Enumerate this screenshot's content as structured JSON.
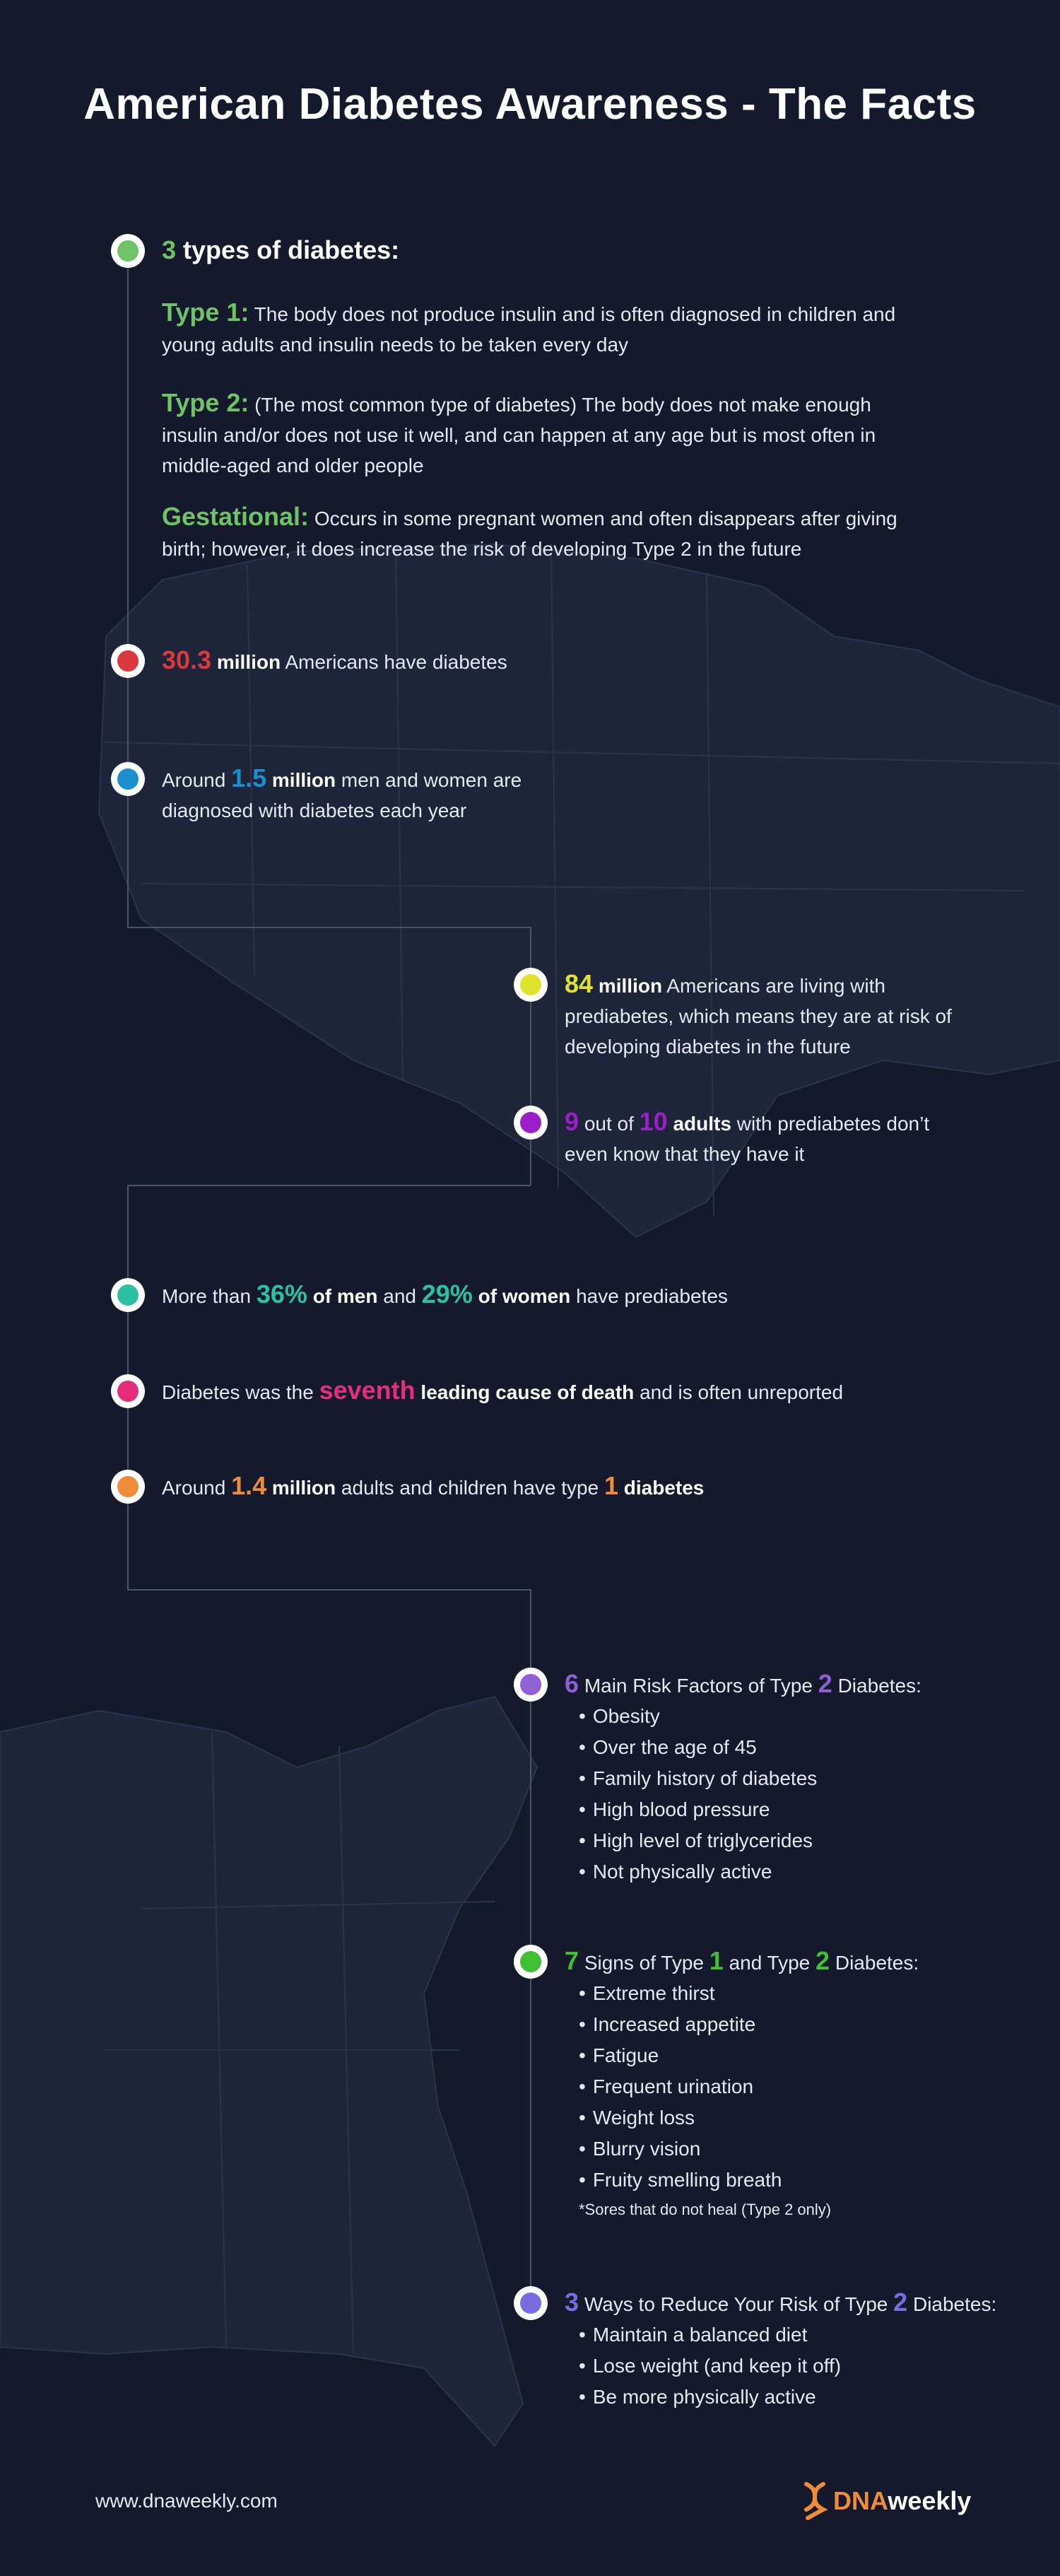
{
  "title": "American Diabetes Awareness - The Facts",
  "colors": {
    "background": "#141a2c",
    "map_land": "#1e253a",
    "map_border": "#2b334b",
    "green": "#70c267",
    "red": "#d9383c",
    "blue": "#1a8fcf",
    "yellow": "#e1e22b",
    "purple": "#9b1fc9",
    "teal": "#2dc1a2",
    "pink": "#e42e7a",
    "orange": "#ef8c3a",
    "lavender": "#8f5fd4",
    "bright_green": "#3fbf32",
    "periwinkle": "#7a6ce0"
  },
  "types": {
    "count": "3",
    "heading": "types of diabetes:",
    "type1_label": "Type 1:",
    "type1_text": "The body does not produce insulin and is often diagnosed in children and young adults and insulin needs to be taken every day",
    "type2_label": "Type 2:",
    "type2_text": "(The most common type of diabetes) The body does not make enough insulin and/or does not use it well, and can happen at any age but is most often in middle-aged and older people",
    "gest_label": "Gestational:",
    "gest_text": "Occurs in some pregnant women and often disappears after giving birth; however, it does increase the risk of developing Type 2 in the future"
  },
  "fact_303": {
    "num": "30.3",
    "unit": "million",
    "rest": "Americans have diabetes"
  },
  "fact_15": {
    "pre": "Around",
    "num": "1.5",
    "unit": "million",
    "rest1": "men and women are",
    "rest2": "diagnosed with diabetes each year"
  },
  "fact_84": {
    "num": "84",
    "unit": "million",
    "rest1": "Americans are living with",
    "line2": "prediabetes, which means they are at risk of",
    "line3": "developing diabetes in the future"
  },
  "fact_9of10": {
    "num1": "9",
    "mid": "out of",
    "num2": "10",
    "adults": "adults",
    "rest1": "with prediabetes don’t",
    "line2": "even know that they have it"
  },
  "fact_pct": {
    "pre": "More than",
    "pct_men": "36%",
    "men": "of men",
    "and": "and",
    "pct_women": "29%",
    "women": "of women",
    "rest": "have prediabetes"
  },
  "fact_seventh": {
    "pre": "Diabetes was the",
    "word": "seventh",
    "bold": "leading cause of death",
    "rest": "and is often unreported"
  },
  "fact_14": {
    "pre": "Around",
    "num": "1.4",
    "unit": "million",
    "mid": "adults and children have type",
    "num2": "1",
    "post": "diabetes"
  },
  "risk": {
    "num": "6",
    "pre": "Main Risk Factors of Type",
    "num2": "2",
    "post": "Diabetes:",
    "items": [
      "Obesity",
      "Over the age of 45",
      "Family history of diabetes",
      "High blood pressure",
      "High level of triglycerides",
      "Not physically active"
    ]
  },
  "signs": {
    "num": "7",
    "pre": "Signs of Type",
    "num1": "1",
    "and": "and Type",
    "num2": "2",
    "post": "Diabetes:",
    "items": [
      "Extreme thirst",
      "Increased appetite",
      "Fatigue",
      "Frequent urination",
      "Weight loss",
      "Blurry vision",
      "Fruity smelling breath"
    ],
    "note": "*Sores that do not heal (Type 2 only)"
  },
  "reduce": {
    "num": "3",
    "pre": "Ways to Reduce Your Risk of Type",
    "num2": "2",
    "post": "Diabetes:",
    "items": [
      "Maintain a balanced diet",
      "Lose weight (and keep it off)",
      "Be more physically active"
    ]
  },
  "footer": {
    "url": "www.dnaweekly.com",
    "logo_a": "DNA",
    "logo_b": "weekly",
    "logo_a_color": "#ef8c3a"
  }
}
